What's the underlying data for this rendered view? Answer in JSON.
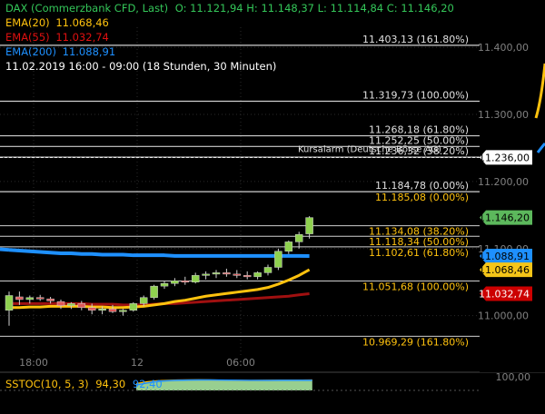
{
  "header": {
    "title": "DAX (Commerzbank CFD, Last)",
    "ohlc": "O: 11.121,94   H: 11.148,37   L: 11.114,84   C: 11.146,20",
    "ema20_label": "EMA(20)",
    "ema20_value": "11.068,46",
    "ema55_label": "EMA(55)",
    "ema55_value": "11.032,74",
    "ema200_label": "EMA(200)",
    "ema200_value": "11.088,91",
    "range": "11.02.2019 16:00 - 09:00   (18 Stunden, 30 Minuten)"
  },
  "fib_upper": [
    {
      "label": "11.403,13 (161.80%)",
      "price": 11403.13
    },
    {
      "label": "11.319,73 (100.00%)",
      "price": 11319.73
    },
    {
      "label": "11.268,18 (61.80%)",
      "price": 11268.18
    },
    {
      "label": "11.252,25 (50.00%)",
      "price": 11252.25
    },
    {
      "label": "11.236,32 (38.20%)",
      "price": 11236.32
    },
    {
      "label": "11.184,78 (0.00%)",
      "price": 11184.78
    }
  ],
  "fib_lower": [
    {
      "label": "11.185,08 (0.00%)",
      "price": 11185.08
    },
    {
      "label": "11.134,08 (38.20%)",
      "price": 11134.08
    },
    {
      "label": "11.118,34 (50.00%)",
      "price": 11118.34
    },
    {
      "label": "11.102,61 (61.80%)",
      "price": 11102.61
    },
    {
      "label": "11.051,68 (100.00%)",
      "price": 11051.68
    },
    {
      "label": "10.969,29 (161.80%)",
      "price": 10969.29
    }
  ],
  "annotation": "Kursalarm (Deutsche Börse AG)",
  "price_axis_ticks": [
    {
      "label": "11.400,00",
      "price": 11400
    },
    {
      "label": "11.300,00",
      "price": 11300
    },
    {
      "label": "11.200,00",
      "price": 11200
    },
    {
      "label": "11.100,00",
      "price": 11100
    },
    {
      "label": "11.000,00",
      "price": 11000
    }
  ],
  "price_badges": [
    {
      "label": "11.236,00",
      "price": 11236,
      "bg": "#ffffff",
      "fg": "#000000"
    },
    {
      "label": "11.146,20",
      "price": 11146.2,
      "bg": "#5cb85c",
      "fg": "#000000"
    },
    {
      "label": "11.088,91",
      "price": 11088.91,
      "bg": "#1e90ff",
      "fg": "#000000"
    },
    {
      "label": "11.068,46",
      "price": 11068.46,
      "bg": "#f5c518",
      "fg": "#000000"
    },
    {
      "label": "11.032,74",
      "price": 11032.74,
      "bg": "#cc0000",
      "fg": "#ffffff"
    }
  ],
  "time_axis": [
    "18:00",
    "12",
    "06:00"
  ],
  "candles": [
    {
      "o": 11008,
      "h": 11036,
      "l": 10985,
      "c": 11030
    },
    {
      "o": 11028,
      "h": 11036,
      "l": 11016,
      "c": 11024
    },
    {
      "o": 11024,
      "h": 11030,
      "l": 11018,
      "c": 11027
    },
    {
      "o": 11027,
      "h": 11031,
      "l": 11022,
      "c": 11025
    },
    {
      "o": 11025,
      "h": 11028,
      "l": 11018,
      "c": 11022
    },
    {
      "o": 11021,
      "h": 11024,
      "l": 11010,
      "c": 11015
    },
    {
      "o": 11015,
      "h": 11020,
      "l": 11010,
      "c": 11018
    },
    {
      "o": 11018,
      "h": 11022,
      "l": 11008,
      "c": 11012
    },
    {
      "o": 11012,
      "h": 11018,
      "l": 11002,
      "c": 11008
    },
    {
      "o": 11008,
      "h": 11014,
      "l": 11002,
      "c": 11010
    },
    {
      "o": 11010,
      "h": 11016,
      "l": 11004,
      "c": 11006
    },
    {
      "o": 11006,
      "h": 11010,
      "l": 11000,
      "c": 11008
    },
    {
      "o": 11008,
      "h": 11020,
      "l": 11006,
      "c": 11018
    },
    {
      "o": 11018,
      "h": 11030,
      "l": 11014,
      "c": 11027
    },
    {
      "o": 11027,
      "h": 11046,
      "l": 11024,
      "c": 11044
    },
    {
      "o": 11044,
      "h": 11052,
      "l": 11040,
      "c": 11048
    },
    {
      "o": 11048,
      "h": 11056,
      "l": 11044,
      "c": 11052
    },
    {
      "o": 11052,
      "h": 11058,
      "l": 11046,
      "c": 11050
    },
    {
      "o": 11050,
      "h": 11064,
      "l": 11048,
      "c": 11060
    },
    {
      "o": 11060,
      "h": 11066,
      "l": 11054,
      "c": 11062
    },
    {
      "o": 11062,
      "h": 11068,
      "l": 11056,
      "c": 11064
    },
    {
      "o": 11064,
      "h": 11070,
      "l": 11058,
      "c": 11062
    },
    {
      "o": 11062,
      "h": 11068,
      "l": 11056,
      "c": 11060
    },
    {
      "o": 11060,
      "h": 11066,
      "l": 11054,
      "c": 11058
    },
    {
      "o": 11058,
      "h": 11066,
      "l": 11054,
      "c": 11064
    },
    {
      "o": 11064,
      "h": 11076,
      "l": 11060,
      "c": 11072
    },
    {
      "o": 11072,
      "h": 11100,
      "l": 11068,
      "c": 11096
    },
    {
      "o": 11096,
      "h": 11112,
      "l": 11092,
      "c": 11110
    },
    {
      "o": 11110,
      "h": 11125,
      "l": 11100,
      "c": 11121
    },
    {
      "o": 11121.94,
      "h": 11148.37,
      "l": 11114.84,
      "c": 11146.2
    }
  ],
  "ema20": [
    11012,
    11012,
    11013,
    11013,
    11014,
    11014,
    11014,
    11014,
    11013,
    11013,
    11012,
    11012,
    11013,
    11014,
    11016,
    11018,
    11021,
    11023,
    11026,
    11029,
    11031,
    11033,
    11035,
    11037,
    11039,
    11042,
    11047,
    11053,
    11060,
    11068.46
  ],
  "ema55": [
    11018,
    11018,
    11018,
    11018,
    11018,
    11018,
    11018,
    11018,
    11017,
    11017,
    11017,
    11016,
    11016,
    11016,
    11017,
    11018,
    11018,
    11019,
    11020,
    11021,
    11022,
    11023,
    11024,
    11025,
    11026,
    11027,
    11028,
    11029,
    11031,
    11032.74
  ],
  "ema200": [
    11098,
    11097,
    11096,
    11095,
    11094,
    11093,
    11093,
    11092,
    11092,
    11091,
    11091,
    11091,
    11090,
    11090,
    11090,
    11090,
    11089,
    11089,
    11089,
    11089,
    11089,
    11089,
    11089,
    11089,
    11089,
    11089,
    11089,
    11089,
    11089,
    11088.91
  ],
  "stoch": {
    "label": "SSTOC(10, 5, 3)",
    "k_value": "94,30",
    "d_value": "92,40",
    "axis_label": "100,00",
    "k": [
      8,
      6,
      7,
      10,
      14,
      12,
      9,
      8,
      10,
      14,
      22,
      40,
      62,
      78,
      88,
      92,
      95,
      96,
      97,
      96,
      94,
      93,
      92,
      91,
      92,
      93,
      94,
      94,
      94,
      94.3
    ],
    "d": [
      10,
      9,
      8,
      9,
      11,
      12,
      11,
      10,
      10,
      12,
      18,
      30,
      50,
      68,
      82,
      89,
      93,
      95,
      96,
      96,
      95,
      94,
      93,
      92,
      92,
      92,
      93,
      93,
      93,
      92.4
    ]
  },
  "colors": {
    "up": "#8fd14f",
    "down": "#e05a5a",
    "ema20": "#ffc20e",
    "ema55": "#a01010",
    "ema200": "#1e90ff",
    "fib_line": "#cfcfcf",
    "grid": "#2a2a2a",
    "axis_text": "#808080",
    "fib_text_upper": "#e0e0e0",
    "fib_text_lower": "#ffc20e"
  }
}
